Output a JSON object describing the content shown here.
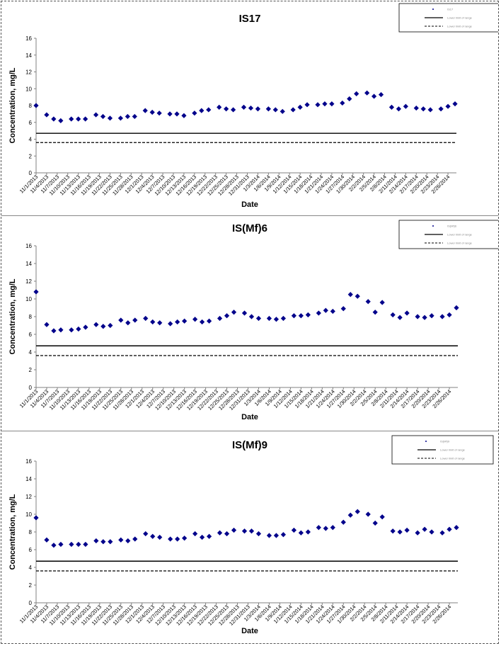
{
  "dates": [
    "11/1/2013",
    "11/4/2013",
    "11/7/2013",
    "11/10/2013",
    "11/13/2013",
    "11/16/2013",
    "11/19/2013",
    "11/22/2013",
    "11/25/2013",
    "11/28/2013",
    "12/1/2013",
    "12/4/2013",
    "12/7/2013",
    "12/10/2013",
    "12/13/2013",
    "12/16/2013",
    "12/19/2013",
    "12/22/2013",
    "12/25/2013",
    "12/28/2013",
    "12/31/2013",
    "1/3/2014",
    "1/6/2014",
    "1/9/2014",
    "1/12/2014",
    "1/15/2014",
    "1/18/2014",
    "1/21/2014",
    "1/24/2014",
    "1/27/2014",
    "1/30/2014",
    "2/2/2014",
    "2/5/2014",
    "2/8/2014",
    "2/11/2014",
    "2/14/2014",
    "2/17/2014",
    "2/20/2014",
    "2/23/2014",
    "2/26/2014"
  ],
  "chart_data": [
    {
      "type": "scatter",
      "title": "IS17",
      "xlabel": "Date",
      "ylabel": "Concentration, mg/L",
      "ylim": [
        0,
        16
      ],
      "yticks": [
        0,
        2,
        4,
        6,
        8,
        10,
        12,
        14,
        16
      ],
      "grid": false,
      "legend": "top-right",
      "legend_entries": [
        "IS17",
        "Lower limit of range",
        "Lower limit of range"
      ],
      "reference_lines": [
        {
          "style": "solid",
          "value": 4.7
        },
        {
          "style": "dashed",
          "value": 3.6
        }
      ],
      "points": [
        [
          "11/1/2013",
          8.0
        ],
        [
          "11/4/2013",
          6.9
        ],
        [
          "11/6/2013",
          6.4
        ],
        [
          "11/8/2013",
          6.2
        ],
        [
          "11/11/2013",
          6.4
        ],
        [
          "11/13/2013",
          6.4
        ],
        [
          "11/15/2013",
          6.4
        ],
        [
          "11/18/2013",
          6.9
        ],
        [
          "11/20/2013",
          6.7
        ],
        [
          "11/22/2013",
          6.5
        ],
        [
          "11/25/2013",
          6.5
        ],
        [
          "11/27/2013",
          6.7
        ],
        [
          "11/29/2013",
          6.7
        ],
        [
          "12/2/2013",
          7.4
        ],
        [
          "12/4/2013",
          7.2
        ],
        [
          "12/6/2013",
          7.1
        ],
        [
          "12/9/2013",
          7.0
        ],
        [
          "12/11/2013",
          7.0
        ],
        [
          "12/13/2013",
          6.8
        ],
        [
          "12/16/2013",
          7.1
        ],
        [
          "12/18/2013",
          7.4
        ],
        [
          "12/20/2013",
          7.5
        ],
        [
          "12/23/2013",
          7.8
        ],
        [
          "12/25/2013",
          7.6
        ],
        [
          "12/27/2013",
          7.5
        ],
        [
          "12/30/2013",
          7.8
        ],
        [
          "1/1/2014",
          7.7
        ],
        [
          "1/3/2014",
          7.6
        ],
        [
          "1/6/2014",
          7.6
        ],
        [
          "1/8/2014",
          7.5
        ],
        [
          "1/10/2014",
          7.3
        ],
        [
          "1/13/2014",
          7.5
        ],
        [
          "1/15/2014",
          7.8
        ],
        [
          "1/17/2014",
          8.1
        ],
        [
          "1/20/2014",
          8.1
        ],
        [
          "1/22/2014",
          8.2
        ],
        [
          "1/24/2014",
          8.2
        ],
        [
          "1/27/2014",
          8.3
        ],
        [
          "1/29/2014",
          8.8
        ],
        [
          "1/31/2014",
          9.4
        ],
        [
          "2/3/2014",
          9.5
        ],
        [
          "2/5/2014",
          9.1
        ],
        [
          "2/7/2014",
          9.3
        ],
        [
          "2/10/2014",
          7.8
        ],
        [
          "2/12/2014",
          7.6
        ],
        [
          "2/14/2014",
          7.9
        ],
        [
          "2/17/2014",
          7.7
        ],
        [
          "2/19/2014",
          7.6
        ],
        [
          "2/21/2014",
          7.5
        ],
        [
          "2/24/2014",
          7.6
        ],
        [
          "2/26/2014",
          7.9
        ],
        [
          "2/28/2014",
          8.2
        ]
      ]
    },
    {
      "type": "scatter",
      "title": "IS(Mf)6",
      "xlabel": "Date",
      "ylabel": "Concentration, mg/L",
      "ylim": [
        0,
        16
      ],
      "yticks": [
        0,
        2,
        4,
        6,
        8,
        10,
        12,
        14,
        16
      ],
      "grid": false,
      "legend": "top-right",
      "legend_entries": [
        "IS(Mf)6",
        "Lower limit of range",
        "Lower limit of range"
      ],
      "reference_lines": [
        {
          "style": "solid",
          "value": 4.7
        },
        {
          "style": "dashed",
          "value": 3.6
        }
      ],
      "points": [
        [
          "11/1/2013",
          10.8
        ],
        [
          "11/4/2013",
          7.1
        ],
        [
          "11/6/2013",
          6.4
        ],
        [
          "11/8/2013",
          6.5
        ],
        [
          "11/11/2013",
          6.5
        ],
        [
          "11/13/2013",
          6.6
        ],
        [
          "11/15/2013",
          6.8
        ],
        [
          "11/18/2013",
          7.1
        ],
        [
          "11/20/2013",
          6.9
        ],
        [
          "11/22/2013",
          7.0
        ],
        [
          "11/25/2013",
          7.6
        ],
        [
          "11/27/2013",
          7.3
        ],
        [
          "11/29/2013",
          7.6
        ],
        [
          "12/2/2013",
          7.8
        ],
        [
          "12/4/2013",
          7.4
        ],
        [
          "12/6/2013",
          7.3
        ],
        [
          "12/9/2013",
          7.2
        ],
        [
          "12/11/2013",
          7.4
        ],
        [
          "12/13/2013",
          7.5
        ],
        [
          "12/16/2013",
          7.7
        ],
        [
          "12/18/2013",
          7.4
        ],
        [
          "12/20/2013",
          7.5
        ],
        [
          "12/23/2013",
          7.8
        ],
        [
          "12/25/2013",
          8.1
        ],
        [
          "12/27/2013",
          8.5
        ],
        [
          "12/30/2013",
          8.4
        ],
        [
          "1/1/2014",
          8.0
        ],
        [
          "1/3/2014",
          7.8
        ],
        [
          "1/6/2014",
          7.8
        ],
        [
          "1/8/2014",
          7.7
        ],
        [
          "1/10/2014",
          7.8
        ],
        [
          "1/13/2014",
          8.1
        ],
        [
          "1/15/2014",
          8.1
        ],
        [
          "1/17/2014",
          8.2
        ],
        [
          "1/20/2014",
          8.4
        ],
        [
          "1/22/2014",
          8.7
        ],
        [
          "1/24/2014",
          8.6
        ],
        [
          "1/27/2014",
          8.9
        ],
        [
          "1/29/2014",
          10.5
        ],
        [
          "1/31/2014",
          10.3
        ],
        [
          "2/3/2014",
          9.7
        ],
        [
          "2/5/2014",
          8.5
        ],
        [
          "2/7/2014",
          9.6
        ],
        [
          "2/10/2014",
          8.2
        ],
        [
          "2/12/2014",
          7.9
        ],
        [
          "2/14/2014",
          8.4
        ],
        [
          "2/17/2014",
          8.0
        ],
        [
          "2/19/2014",
          7.9
        ],
        [
          "2/21/2014",
          8.1
        ],
        [
          "2/24/2014",
          8.0
        ],
        [
          "2/26/2014",
          8.2
        ],
        [
          "2/28/2014",
          9.0
        ]
      ]
    },
    {
      "type": "scatter",
      "title": "IS(Mf)9",
      "xlabel": "Date",
      "ylabel": "Concentration, mg/L",
      "ylim": [
        0,
        16
      ],
      "yticks": [
        0,
        2,
        4,
        6,
        8,
        10,
        12,
        14,
        16
      ],
      "grid": false,
      "legend": "top-right",
      "legend_entries": [
        "IS(Mf)9",
        "Lower limit of range",
        "Lower limit of range"
      ],
      "reference_lines": [
        {
          "style": "solid",
          "value": 4.7
        },
        {
          "style": "dashed",
          "value": 3.6
        }
      ],
      "points": [
        [
          "11/1/2013",
          9.6
        ],
        [
          "11/4/2013",
          7.1
        ],
        [
          "11/6/2013",
          6.5
        ],
        [
          "11/8/2013",
          6.6
        ],
        [
          "11/11/2013",
          6.6
        ],
        [
          "11/13/2013",
          6.6
        ],
        [
          "11/15/2013",
          6.6
        ],
        [
          "11/18/2013",
          7.0
        ],
        [
          "11/20/2013",
          6.9
        ],
        [
          "11/22/2013",
          6.9
        ],
        [
          "11/25/2013",
          7.1
        ],
        [
          "11/27/2013",
          7.0
        ],
        [
          "11/29/2013",
          7.2
        ],
        [
          "12/2/2013",
          7.8
        ],
        [
          "12/4/2013",
          7.5
        ],
        [
          "12/6/2013",
          7.4
        ],
        [
          "12/9/2013",
          7.2
        ],
        [
          "12/11/2013",
          7.2
        ],
        [
          "12/13/2013",
          7.3
        ],
        [
          "12/16/2013",
          7.8
        ],
        [
          "12/18/2013",
          7.4
        ],
        [
          "12/20/2013",
          7.5
        ],
        [
          "12/23/2013",
          7.9
        ],
        [
          "12/25/2013",
          7.8
        ],
        [
          "12/27/2013",
          8.2
        ],
        [
          "12/30/2013",
          8.1
        ],
        [
          "1/1/2014",
          8.1
        ],
        [
          "1/3/2014",
          7.8
        ],
        [
          "1/6/2014",
          7.6
        ],
        [
          "1/8/2014",
          7.6
        ],
        [
          "1/10/2014",
          7.7
        ],
        [
          "1/13/2014",
          8.2
        ],
        [
          "1/15/2014",
          7.9
        ],
        [
          "1/17/2014",
          8.0
        ],
        [
          "1/20/2014",
          8.5
        ],
        [
          "1/22/2014",
          8.4
        ],
        [
          "1/24/2014",
          8.5
        ],
        [
          "1/27/2014",
          9.1
        ],
        [
          "1/29/2014",
          9.9
        ],
        [
          "1/31/2014",
          10.3
        ],
        [
          "2/3/2014",
          10.0
        ],
        [
          "2/5/2014",
          9.0
        ],
        [
          "2/7/2014",
          9.7
        ],
        [
          "2/10/2014",
          8.1
        ],
        [
          "2/12/2014",
          8.0
        ],
        [
          "2/14/2014",
          8.2
        ],
        [
          "2/17/2014",
          7.9
        ],
        [
          "2/19/2014",
          8.3
        ],
        [
          "2/21/2014",
          8.0
        ],
        [
          "2/24/2014",
          7.9
        ],
        [
          "2/26/2014",
          8.3
        ],
        [
          "2/28/2014",
          8.5
        ]
      ]
    }
  ],
  "colors": {
    "marker": "#00008B",
    "axis": "#808080",
    "reference": "#000000"
  }
}
